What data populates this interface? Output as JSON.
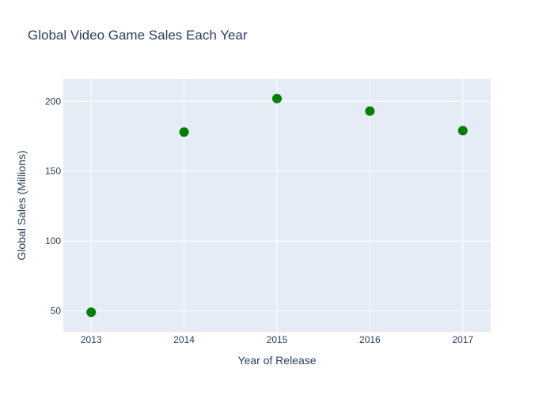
{
  "chart_data": {
    "type": "scatter",
    "title": "Global Video Game Sales Each Year",
    "xlabel": "Year of Release",
    "ylabel": "Global Sales (Millions)",
    "x": [
      2013,
      2014,
      2015,
      2016,
      2017
    ],
    "y": [
      49,
      178,
      202,
      193,
      179
    ],
    "xticks": [
      "2013",
      "2014",
      "2015",
      "2016",
      "2017"
    ],
    "yticks": [
      50,
      100,
      150,
      200
    ],
    "xlim": [
      2012.7,
      2017.3
    ],
    "ylim": [
      35,
      216
    ],
    "grid": true,
    "legend": "none",
    "colors": {
      "marker": "#008000",
      "plot_background": "#e5ecf6",
      "grid": "#ffffff",
      "text": "#2a3f5f"
    }
  }
}
